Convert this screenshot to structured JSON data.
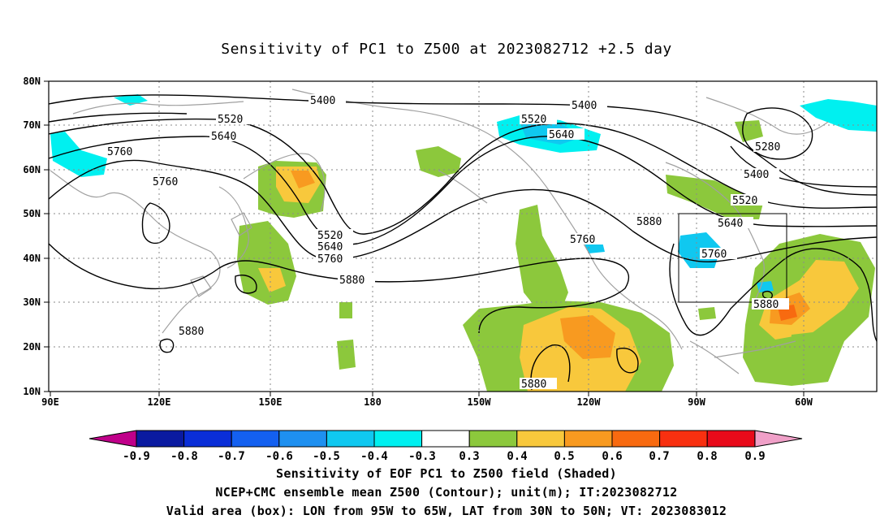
{
  "title": "Sensitivity of PC1 to Z500 at 2023082712 +2.5 day",
  "lat_labels": [
    "80N",
    "70N",
    "60N",
    "50N",
    "40N",
    "30N",
    "20N",
    "10N"
  ],
  "lon_labels": [
    "90E",
    "120E",
    "150E",
    "180",
    "150W",
    "120W",
    "90W",
    "60W"
  ],
  "contour_labels": [
    "5400",
    "5400",
    "5520",
    "5520",
    "5640",
    "5640",
    "5760",
    "5760",
    "5520",
    "5640",
    "5760",
    "5880",
    "5880",
    "5760",
    "5880",
    "5760",
    "5880",
    "5640",
    "5520",
    "5400",
    "5280",
    "5880"
  ],
  "colorbar": {
    "labels": [
      "-0.9",
      "-0.8",
      "-0.7",
      "-0.6",
      "-0.5",
      "-0.4",
      "-0.3",
      "0.3",
      "0.4",
      "0.5",
      "0.6",
      "0.7",
      "0.8",
      "0.9"
    ],
    "colors": [
      "#c0008a",
      "#0a1aa0",
      "#0a2ed8",
      "#1460f0",
      "#1e90f0",
      "#10c8f0",
      "#00f0f0",
      "#ffffff",
      "#8cc83c",
      "#f8c83c",
      "#f89a20",
      "#f86a10",
      "#f83010",
      "#e80a1a",
      "#f0a0c8"
    ]
  },
  "valid_box": {
    "lon_from": "95W",
    "lon_to": "65W",
    "lat_from": "30N",
    "lat_to": "50N"
  },
  "footer": {
    "line1": "Sensitivity of EOF PC1 to Z500 field (Shaded)",
    "line2": "NCEP+CMC ensemble mean Z500 (Contour); unit(m); IT:2023082712",
    "line3": "Valid area (box): LON from 95W to 65W, LAT from 30N to 50N; VT: 2023083012"
  }
}
